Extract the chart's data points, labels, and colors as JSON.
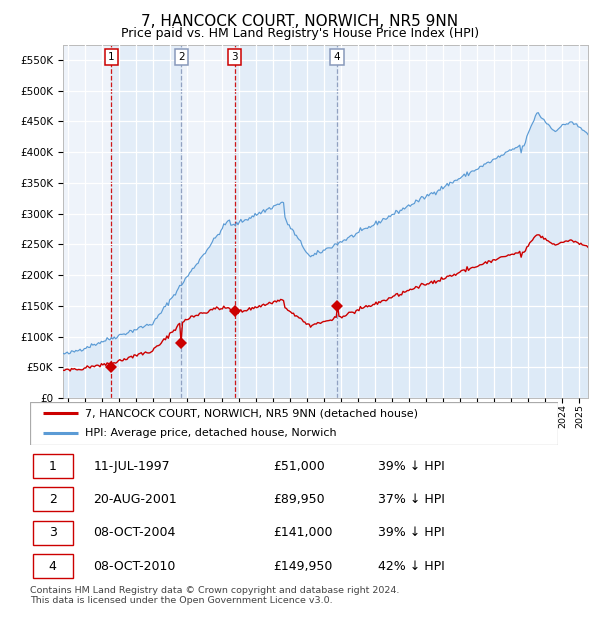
{
  "title": "7, HANCOCK COURT, NORWICH, NR5 9NN",
  "subtitle": "Price paid vs. HM Land Registry's House Price Index (HPI)",
  "title_fontsize": 11,
  "subtitle_fontsize": 9,
  "hpi_color": "#5b9bd5",
  "hpi_fill_color": "#ddeaf7",
  "price_color": "#cc0000",
  "marker_color": "#cc0000",
  "ylim": [
    0,
    575000
  ],
  "yticks": [
    0,
    50000,
    100000,
    150000,
    200000,
    250000,
    300000,
    350000,
    400000,
    450000,
    500000,
    550000
  ],
  "ytick_labels": [
    "£0",
    "£50K",
    "£100K",
    "£150K",
    "£200K",
    "£250K",
    "£300K",
    "£350K",
    "£400K",
    "£450K",
    "£500K",
    "£550K"
  ],
  "xlim_start": 1994.7,
  "xlim_end": 2025.5,
  "sale_dates_dec": [
    1997.53,
    2001.64,
    2004.77,
    2010.77
  ],
  "sale_prices": [
    51000,
    89950,
    141000,
    149950
  ],
  "sale_labels": [
    "1",
    "2",
    "3",
    "4"
  ],
  "legend_line1": "7, HANCOCK COURT, NORWICH, NR5 9NN (detached house)",
  "legend_line2": "HPI: Average price, detached house, Norwich",
  "table_rows": [
    [
      "1",
      "11-JUL-1997",
      "£51,000",
      "39% ↓ HPI"
    ],
    [
      "2",
      "20-AUG-2001",
      "£89,950",
      "37% ↓ HPI"
    ],
    [
      "3",
      "08-OCT-2004",
      "£141,000",
      "39% ↓ HPI"
    ],
    [
      "4",
      "08-OCT-2010",
      "£149,950",
      "42% ↓ HPI"
    ]
  ],
  "footnote": "Contains HM Land Registry data © Crown copyright and database right 2024.\nThis data is licensed under the Open Government Licence v3.0.",
  "background_color": "#ffffff",
  "plot_bg_color": "#eef3fa",
  "grid_color": "#ffffff"
}
